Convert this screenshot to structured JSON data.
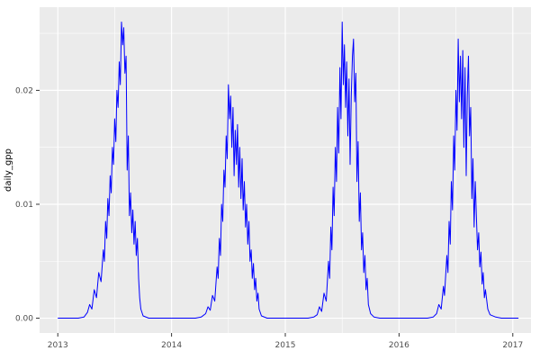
{
  "chart_data": {
    "type": "line",
    "title": "",
    "xlabel": "",
    "ylabel": "daily_gpp",
    "legend_position": "none",
    "grid": true,
    "xlim": [
      2012.84,
      2017.16
    ],
    "ylim": [
      -0.0013,
      0.0273
    ],
    "xticks": [
      2013,
      2014,
      2015,
      2016,
      2017
    ],
    "xtick_labels": [
      "2013",
      "2014",
      "2015",
      "2016",
      "2017"
    ],
    "yticks": [
      0,
      0.01,
      0.02
    ],
    "ytick_labels": [
      "0.00",
      "0.01",
      "0.02"
    ],
    "x_minor": [
      2013.5,
      2014.5,
      2015.5,
      2016.5
    ],
    "y_minor": [
      0.005,
      0.015,
      0.025
    ],
    "panel_bg": "#EBEBEB",
    "grid_color": "#FFFFFF",
    "tick_color": "#333333",
    "tick_label_color": "#4D4D4D",
    "axis_title_color": "#000000",
    "line_color": "#0000FF",
    "series": [
      {
        "name": "daily_gpp",
        "points": [
          [
            2013.0,
            0
          ],
          [
            2013.06,
            0
          ],
          [
            2013.12,
            0
          ],
          [
            2013.18,
            0
          ],
          [
            2013.23,
            0.0001
          ],
          [
            2013.26,
            0.0005
          ],
          [
            2013.28,
            0.0012
          ],
          [
            2013.3,
            0.0008
          ],
          [
            2013.32,
            0.0025
          ],
          [
            2013.34,
            0.0018
          ],
          [
            2013.36,
            0.004
          ],
          [
            2013.38,
            0.0032
          ],
          [
            2013.4,
            0.006
          ],
          [
            2013.41,
            0.005
          ],
          [
            2013.42,
            0.0085
          ],
          [
            2013.43,
            0.007
          ],
          [
            2013.44,
            0.0105
          ],
          [
            2013.45,
            0.009
          ],
          [
            2013.46,
            0.0125
          ],
          [
            2013.47,
            0.011
          ],
          [
            2013.48,
            0.015
          ],
          [
            2013.49,
            0.0135
          ],
          [
            2013.5,
            0.0175
          ],
          [
            2013.51,
            0.0155
          ],
          [
            2013.52,
            0.02
          ],
          [
            2013.53,
            0.0185
          ],
          [
            2013.54,
            0.0225
          ],
          [
            2013.55,
            0.0205
          ],
          [
            2013.56,
            0.026
          ],
          [
            2013.57,
            0.024
          ],
          [
            2013.58,
            0.0255
          ],
          [
            2013.59,
            0.0215
          ],
          [
            2013.6,
            0.023
          ],
          [
            2013.61,
            0.013
          ],
          [
            2013.62,
            0.016
          ],
          [
            2013.63,
            0.009
          ],
          [
            2013.64,
            0.011
          ],
          [
            2013.65,
            0.0075
          ],
          [
            2013.66,
            0.0095
          ],
          [
            2013.67,
            0.0065
          ],
          [
            2013.68,
            0.0085
          ],
          [
            2013.69,
            0.0055
          ],
          [
            2013.7,
            0.007
          ],
          [
            2013.71,
            0.0035
          ],
          [
            2013.72,
            0.0018
          ],
          [
            2013.73,
            0.0008
          ],
          [
            2013.75,
            0.0002
          ],
          [
            2013.8,
            0
          ],
          [
            2013.87,
            0
          ],
          [
            2013.94,
            0
          ],
          [
            2014.0,
            0
          ],
          [
            2014.07,
            0
          ],
          [
            2014.14,
            0
          ],
          [
            2014.21,
            0
          ],
          [
            2014.26,
            0.0001
          ],
          [
            2014.3,
            0.0004
          ],
          [
            2014.32,
            0.001
          ],
          [
            2014.34,
            0.0007
          ],
          [
            2014.36,
            0.002
          ],
          [
            2014.38,
            0.0015
          ],
          [
            2014.4,
            0.0045
          ],
          [
            2014.41,
            0.0035
          ],
          [
            2014.42,
            0.007
          ],
          [
            2014.43,
            0.0055
          ],
          [
            2014.44,
            0.01
          ],
          [
            2014.45,
            0.0085
          ],
          [
            2014.46,
            0.013
          ],
          [
            2014.47,
            0.0115
          ],
          [
            2014.48,
            0.016
          ],
          [
            2014.49,
            0.014
          ],
          [
            2014.5,
            0.0205
          ],
          [
            2014.51,
            0.0175
          ],
          [
            2014.52,
            0.0195
          ],
          [
            2014.53,
            0.015
          ],
          [
            2014.54,
            0.0185
          ],
          [
            2014.55,
            0.0125
          ],
          [
            2014.56,
            0.0165
          ],
          [
            2014.57,
            0.0135
          ],
          [
            2014.58,
            0.017
          ],
          [
            2014.59,
            0.0115
          ],
          [
            2014.6,
            0.015
          ],
          [
            2014.61,
            0.0105
          ],
          [
            2014.62,
            0.014
          ],
          [
            2014.63,
            0.0095
          ],
          [
            2014.64,
            0.012
          ],
          [
            2014.65,
            0.008
          ],
          [
            2014.66,
            0.01
          ],
          [
            2014.67,
            0.0065
          ],
          [
            2014.68,
            0.0085
          ],
          [
            2014.69,
            0.005
          ],
          [
            2014.7,
            0.006
          ],
          [
            2014.71,
            0.0035
          ],
          [
            2014.72,
            0.0048
          ],
          [
            2014.73,
            0.0025
          ],
          [
            2014.74,
            0.0035
          ],
          [
            2014.75,
            0.0015
          ],
          [
            2014.76,
            0.0022
          ],
          [
            2014.77,
            0.0008
          ],
          [
            2014.79,
            0.0002
          ],
          [
            2014.84,
            0
          ],
          [
            2014.9,
            0
          ],
          [
            2014.96,
            0
          ],
          [
            2015.02,
            0
          ],
          [
            2015.08,
            0
          ],
          [
            2015.14,
            0
          ],
          [
            2015.2,
            0
          ],
          [
            2015.25,
            0.0001
          ],
          [
            2015.28,
            0.0003
          ],
          [
            2015.3,
            0.001
          ],
          [
            2015.32,
            0.0006
          ],
          [
            2015.34,
            0.0022
          ],
          [
            2015.36,
            0.0015
          ],
          [
            2015.38,
            0.005
          ],
          [
            2015.39,
            0.0035
          ],
          [
            2015.4,
            0.008
          ],
          [
            2015.41,
            0.006
          ],
          [
            2015.42,
            0.0115
          ],
          [
            2015.43,
            0.009
          ],
          [
            2015.44,
            0.015
          ],
          [
            2015.45,
            0.012
          ],
          [
            2015.46,
            0.0185
          ],
          [
            2015.47,
            0.0145
          ],
          [
            2015.48,
            0.022
          ],
          [
            2015.49,
            0.0175
          ],
          [
            2015.5,
            0.026
          ],
          [
            2015.51,
            0.0205
          ],
          [
            2015.52,
            0.024
          ],
          [
            2015.53,
            0.0185
          ],
          [
            2015.54,
            0.0225
          ],
          [
            2015.55,
            0.016
          ],
          [
            2015.56,
            0.021
          ],
          [
            2015.57,
            0.0135
          ],
          [
            2015.58,
            0.0195
          ],
          [
            2015.59,
            0.023
          ],
          [
            2015.6,
            0.0245
          ],
          [
            2015.61,
            0.019
          ],
          [
            2015.62,
            0.0215
          ],
          [
            2015.63,
            0.012
          ],
          [
            2015.64,
            0.0155
          ],
          [
            2015.65,
            0.0085
          ],
          [
            2015.66,
            0.011
          ],
          [
            2015.67,
            0.006
          ],
          [
            2015.68,
            0.0075
          ],
          [
            2015.69,
            0.004
          ],
          [
            2015.7,
            0.0055
          ],
          [
            2015.71,
            0.0025
          ],
          [
            2015.72,
            0.0035
          ],
          [
            2015.73,
            0.0012
          ],
          [
            2015.75,
            0.0004
          ],
          [
            2015.78,
            0.0001
          ],
          [
            2015.83,
            0
          ],
          [
            2015.9,
            0
          ],
          [
            2015.97,
            0
          ],
          [
            2016.04,
            0
          ],
          [
            2016.11,
            0
          ],
          [
            2016.18,
            0
          ],
          [
            2016.25,
            0
          ],
          [
            2016.3,
            0.0001
          ],
          [
            2016.33,
            0.0004
          ],
          [
            2016.35,
            0.0012
          ],
          [
            2016.37,
            0.0008
          ],
          [
            2016.39,
            0.0028
          ],
          [
            2016.4,
            0.002
          ],
          [
            2016.42,
            0.0055
          ],
          [
            2016.43,
            0.004
          ],
          [
            2016.44,
            0.0085
          ],
          [
            2016.45,
            0.0065
          ],
          [
            2016.46,
            0.012
          ],
          [
            2016.47,
            0.0095
          ],
          [
            2016.48,
            0.016
          ],
          [
            2016.49,
            0.013
          ],
          [
            2016.5,
            0.02
          ],
          [
            2016.51,
            0.0165
          ],
          [
            2016.52,
            0.0245
          ],
          [
            2016.53,
            0.019
          ],
          [
            2016.54,
            0.023
          ],
          [
            2016.55,
            0.0175
          ],
          [
            2016.56,
            0.0235
          ],
          [
            2016.57,
            0.015
          ],
          [
            2016.58,
            0.022
          ],
          [
            2016.59,
            0.0125
          ],
          [
            2016.6,
            0.0195
          ],
          [
            2016.61,
            0.023
          ],
          [
            2016.62,
            0.016
          ],
          [
            2016.63,
            0.0185
          ],
          [
            2016.64,
            0.0105
          ],
          [
            2016.65,
            0.014
          ],
          [
            2016.66,
            0.008
          ],
          [
            2016.67,
            0.012
          ],
          [
            2016.68,
            0.009
          ],
          [
            2016.69,
            0.006
          ],
          [
            2016.7,
            0.0075
          ],
          [
            2016.71,
            0.0045
          ],
          [
            2016.72,
            0.0058
          ],
          [
            2016.73,
            0.003
          ],
          [
            2016.74,
            0.004
          ],
          [
            2016.75,
            0.0018
          ],
          [
            2016.76,
            0.0025
          ],
          [
            2016.78,
            0.0008
          ],
          [
            2016.8,
            0.0003
          ],
          [
            2016.85,
            0.0001
          ],
          [
            2016.9,
            0
          ],
          [
            2016.95,
            0
          ],
          [
            2017.0,
            0
          ],
          [
            2017.05,
            0
          ]
        ]
      }
    ]
  }
}
